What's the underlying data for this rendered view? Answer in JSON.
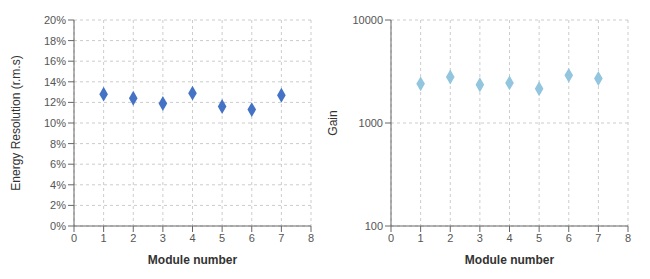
{
  "chart_data": [
    {
      "type": "scatter",
      "x": [
        1,
        2,
        3,
        4,
        5,
        6,
        7
      ],
      "values": [
        0.128,
        0.124,
        0.119,
        0.129,
        0.116,
        0.113,
        0.127
      ],
      "xlabel": "Module number",
      "ylabel": "Energy Resolution (r.m.s)",
      "xlim": [
        0,
        8
      ],
      "ylim": [
        0.0,
        0.2
      ],
      "xticks": [
        0,
        1,
        2,
        3,
        4,
        5,
        6,
        7,
        8
      ],
      "yticks": [
        {
          "value": 0.0,
          "label": "0%"
        },
        {
          "value": 0.02,
          "label": "2%"
        },
        {
          "value": 0.04,
          "label": "4%"
        },
        {
          "value": 0.06,
          "label": "6%"
        },
        {
          "value": 0.08,
          "label": "8%"
        },
        {
          "value": 0.1,
          "label": "10%"
        },
        {
          "value": 0.12,
          "label": "12%"
        },
        {
          "value": 0.14,
          "label": "14%"
        },
        {
          "value": 0.16,
          "label": "16%"
        },
        {
          "value": 0.18,
          "label": "18%"
        },
        {
          "value": 0.2,
          "label": "20%"
        }
      ],
      "color": "#4472C4",
      "marker": "diamond",
      "grid": true
    },
    {
      "type": "scatter",
      "x": [
        1,
        2,
        3,
        4,
        5,
        6,
        7
      ],
      "values": [
        2400,
        2800,
        2350,
        2450,
        2150,
        2900,
        2700
      ],
      "xlabel": "Module number",
      "ylabel": "Gain",
      "xlim": [
        0,
        8
      ],
      "ylim": [
        100,
        10000
      ],
      "xticks": [
        0,
        1,
        2,
        3,
        4,
        5,
        6,
        7,
        8
      ],
      "yticks": [
        100,
        1000,
        10000
      ],
      "log": "y",
      "color": "#92C5DE",
      "marker": "diamond",
      "grid": true
    }
  ]
}
